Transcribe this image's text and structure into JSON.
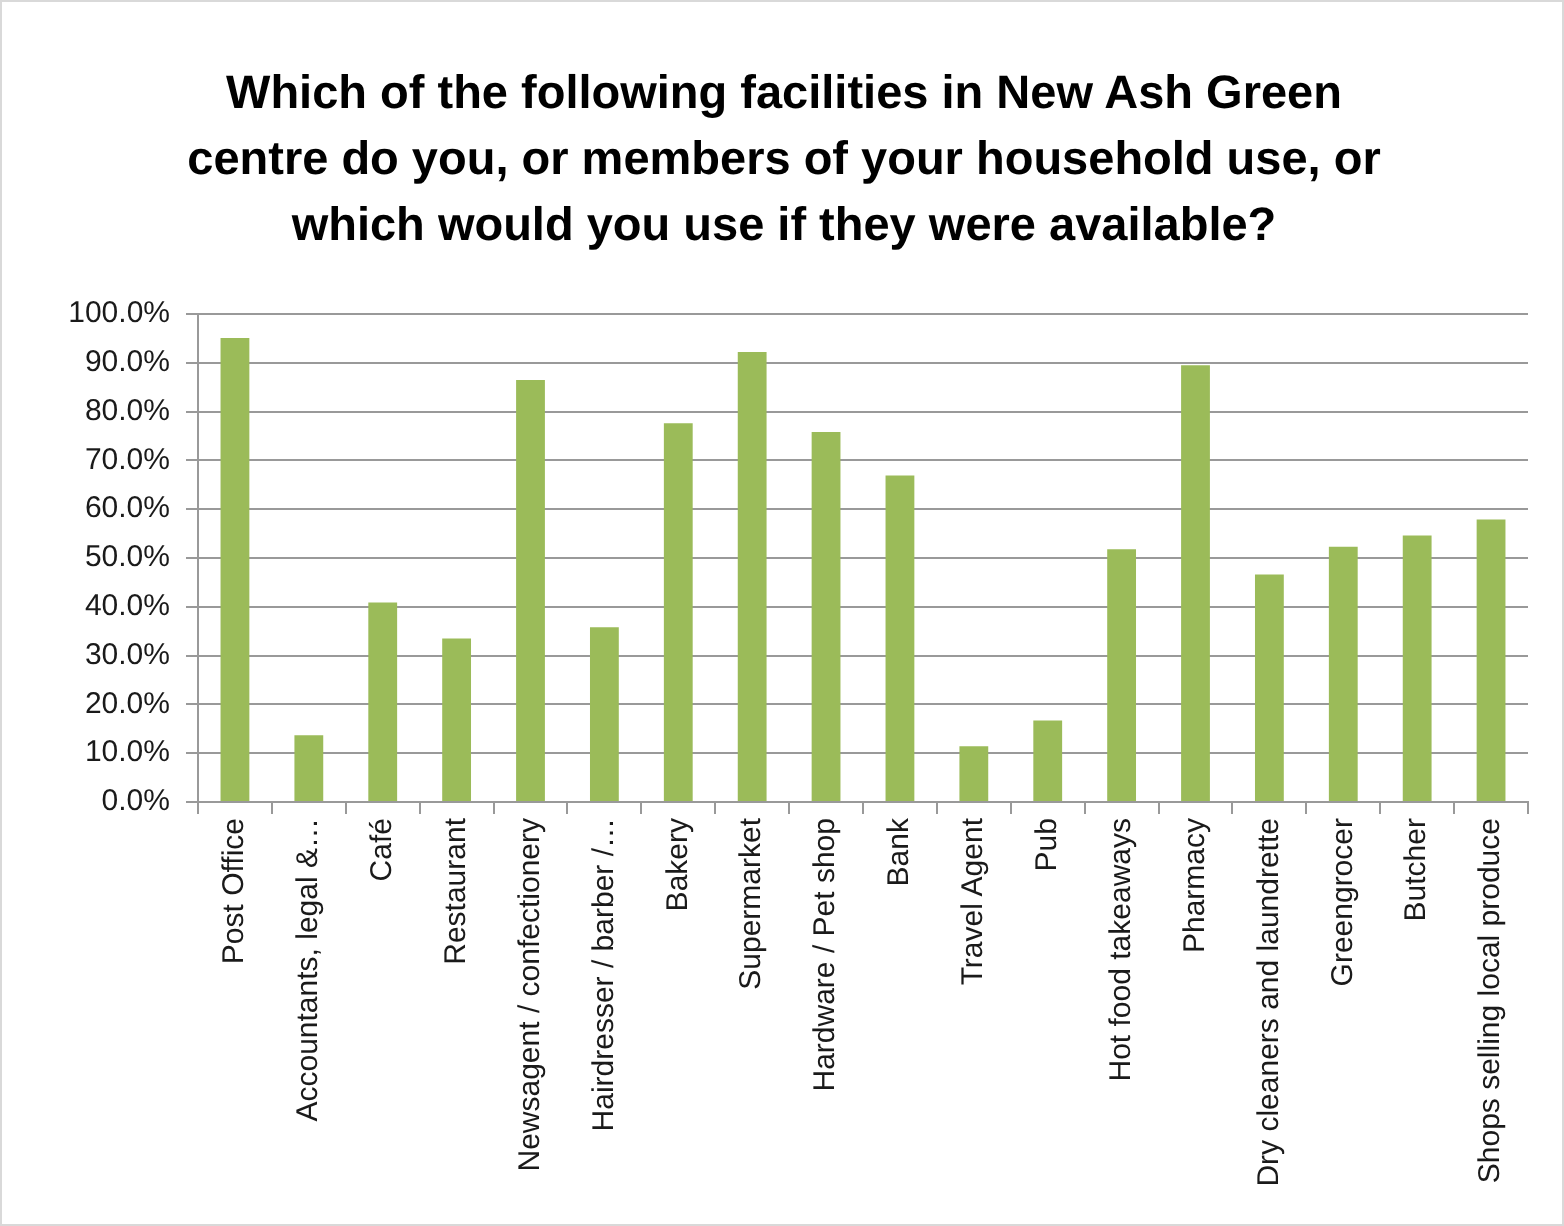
{
  "chart_data": {
    "type": "bar",
    "title": "Which of the following facilities in New Ash Green centre do you, or members of your household use, or which would you use if they were available?",
    "categories": [
      "Post Office",
      "Accountants, legal &…",
      "Café",
      "Restaurant",
      "Newsagent / confectionery",
      "Hairdresser / barber /…",
      "Bakery",
      "Supermarket",
      "Hardware / Pet shop",
      "Bank",
      "Travel Agent",
      "Pub",
      "Hot food takeaways",
      "Pharmacy",
      "Dry cleaners and laundrette",
      "Greengrocer",
      "Butcher",
      "Shops selling local produce"
    ],
    "values": [
      95.1,
      13.7,
      40.9,
      33.5,
      86.5,
      35.8,
      77.6,
      92.2,
      75.8,
      66.9,
      11.4,
      16.7,
      51.8,
      89.5,
      46.6,
      52.3,
      54.6,
      57.9
    ],
    "color": "#9bbb59",
    "ylim": [
      0,
      100
    ],
    "yticks": [
      {
        "value": 0,
        "label": "0.0%"
      },
      {
        "value": 10,
        "label": "10.0%"
      },
      {
        "value": 20,
        "label": "20.0%"
      },
      {
        "value": 30,
        "label": "30.0%"
      },
      {
        "value": 40,
        "label": "40.0%"
      },
      {
        "value": 50,
        "label": "50.0%"
      },
      {
        "value": 60,
        "label": "60.0%"
      },
      {
        "value": 70,
        "label": "70.0%"
      },
      {
        "value": 80,
        "label": "80.0%"
      },
      {
        "value": 90,
        "label": "90.0%"
      },
      {
        "value": 100,
        "label": "100.0%"
      }
    ],
    "grid": "y"
  }
}
